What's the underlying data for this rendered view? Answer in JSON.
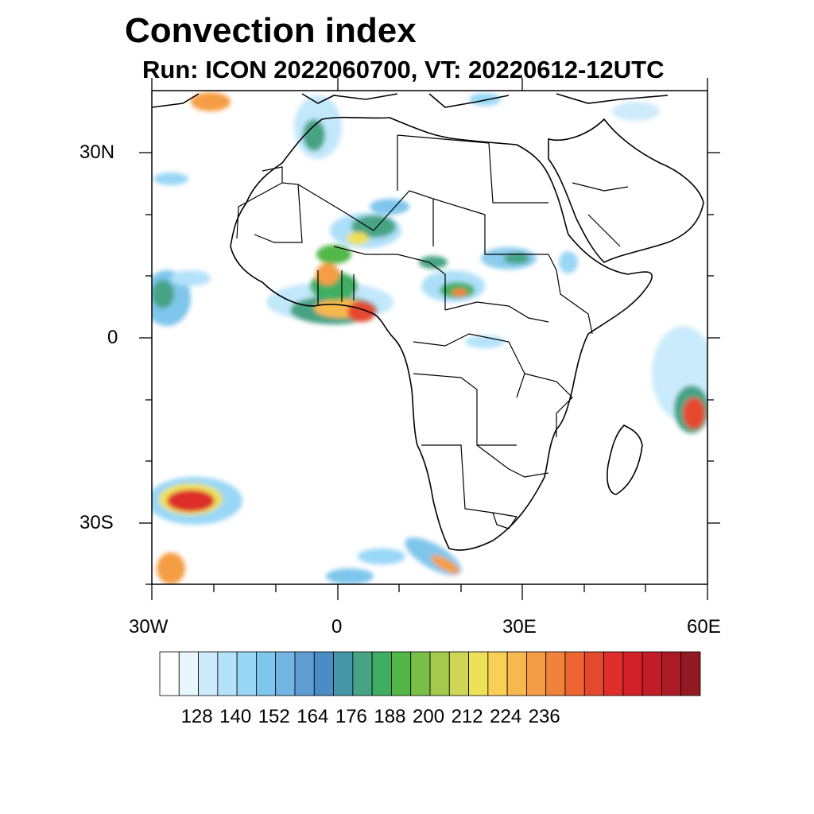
{
  "title": "Convection index",
  "subtitle": "Run: ICON 2022060700,  VT: 20220612-12UTC",
  "map": {
    "lat_labels": [
      "30N",
      "0",
      "30S"
    ],
    "lon_labels": [
      "30W",
      "0",
      "30E",
      "60E"
    ],
    "lon_range": [
      -30,
      60
    ],
    "lat_range": [
      -40,
      40
    ]
  },
  "colorbar": {
    "labels": [
      "128",
      "140",
      "152",
      "164",
      "176",
      "188",
      "200",
      "212",
      "224",
      "236"
    ],
    "colors": [
      "#ffffff",
      "#e8f6fd",
      "#cdebfb",
      "#b3e2fa",
      "#99d7f6",
      "#7fc6ec",
      "#73b6e4",
      "#5d9dd3",
      "#4a8cc4",
      "#4597a8",
      "#46a384",
      "#3fae62",
      "#53b748",
      "#7abf48",
      "#a3c94d",
      "#cdd655",
      "#ede15a",
      "#f9cf55",
      "#f7b84d",
      "#f59d44",
      "#f1823b",
      "#ec6533",
      "#e4492d",
      "#dd2e2a",
      "#d22128",
      "#c11c27",
      "#ac1b25",
      "#931a22"
    ]
  },
  "legend_icon": "colorbar-legend"
}
